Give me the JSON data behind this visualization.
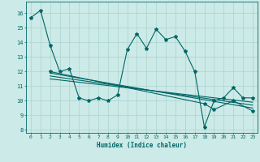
{
  "xlabel": "Humidex (Indice chaleur)",
  "bg_color": "#cceae7",
  "line_color": "#006666",
  "grid_color": "#aad4d0",
  "xlim": [
    -0.5,
    23.5
  ],
  "ylim": [
    7.8,
    16.8
  ],
  "yticks": [
    8,
    9,
    10,
    11,
    12,
    13,
    14,
    15,
    16
  ],
  "xticks": [
    0,
    1,
    2,
    3,
    4,
    5,
    6,
    7,
    8,
    9,
    10,
    11,
    12,
    13,
    14,
    15,
    16,
    17,
    18,
    19,
    20,
    21,
    22,
    23
  ],
  "series1_x": [
    0,
    1,
    2,
    3,
    4,
    5,
    6,
    7,
    8,
    9,
    10,
    11,
    12,
    13,
    14,
    15,
    16,
    17,
    18,
    19,
    20,
    21,
    22,
    23
  ],
  "series1_y": [
    15.7,
    16.2,
    13.8,
    12.0,
    12.2,
    10.2,
    10.0,
    10.2,
    10.0,
    10.4,
    13.5,
    14.6,
    13.6,
    14.9,
    14.2,
    14.4,
    13.4,
    12.0,
    8.2,
    10.0,
    10.2,
    10.9,
    10.2,
    10.2
  ],
  "series2_x": [
    2,
    18,
    19,
    21,
    23
  ],
  "series2_y": [
    12.0,
    9.8,
    9.4,
    10.0,
    9.3
  ],
  "series3_x": [
    2,
    23
  ],
  "series3_y": [
    11.9,
    9.5
  ],
  "series4_x": [
    2,
    23
  ],
  "series4_y": [
    11.7,
    9.7
  ],
  "series5_x": [
    2,
    23
  ],
  "series5_y": [
    11.5,
    9.9
  ]
}
